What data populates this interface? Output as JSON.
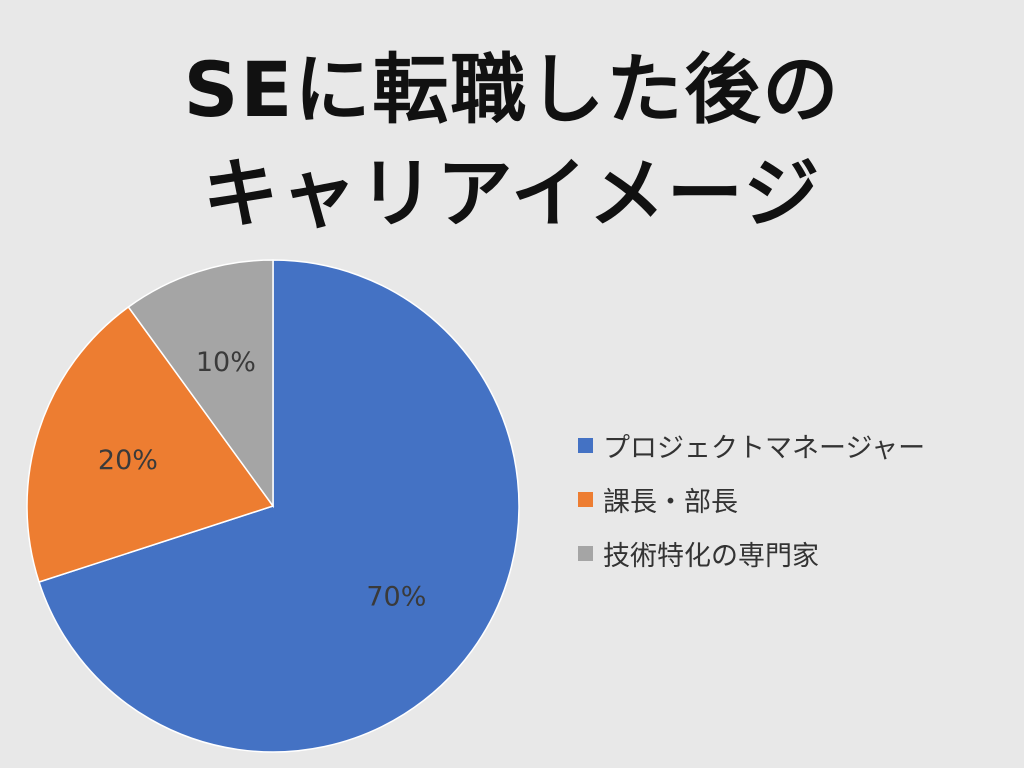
{
  "title": {
    "line1": "SEに転職した後の",
    "line2": "キャリアイメージ"
  },
  "chart_data": {
    "type": "pie",
    "title": "SEに転職した後の キャリアイメージ",
    "slices": [
      {
        "label": "プロジェクトマネージャー",
        "value": 70,
        "display": "70%",
        "color": "#4472c4"
      },
      {
        "label": "課長・部長",
        "value": 20,
        "display": "20%",
        "color": "#ed7d31"
      },
      {
        "label": "技術特化の専門家",
        "value": 10,
        "display": "10%",
        "color": "#a5a5a5"
      }
    ],
    "start_angle_deg": 0,
    "direction": "clockwise",
    "legend_position": "right"
  }
}
